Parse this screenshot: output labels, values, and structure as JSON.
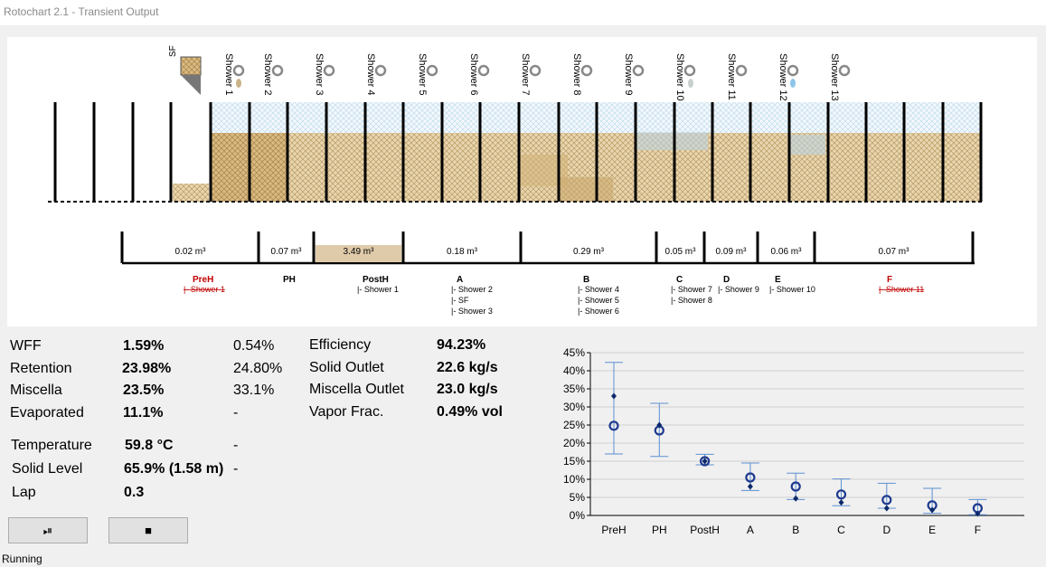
{
  "window": {
    "title": "Rotochart 2.1 - Transient Output"
  },
  "diagram": {
    "sf_label": "SF",
    "showers": [
      "Shower 1",
      "Shower 2",
      "Shower 3",
      "Shower 4",
      "Shower 5",
      "Shower 6",
      "Shower 7",
      "Shower 8",
      "Shower 9",
      "Shower 10",
      "Shower 11",
      "Shower 12",
      "Shower 13"
    ],
    "volumes": [
      "0.02 m³",
      "0.07 m³",
      "3.49 m³",
      "0.18 m³",
      "0.29 m³",
      "0.05 m³",
      "0.09 m³",
      "0.06 m³",
      "0.07 m³"
    ],
    "stages": [
      {
        "name": "PreH",
        "color": "#c00000",
        "subs": [
          "|- Shower 1"
        ],
        "strike": true
      },
      {
        "name": "PH",
        "color": "#000000",
        "subs": [],
        "strike": false
      },
      {
        "name": "PostH",
        "color": "#000000",
        "subs": [
          "|- Shower 1"
        ],
        "strike": false
      },
      {
        "name": "A",
        "color": "#000000",
        "subs": [
          "|- Shower 2",
          "|- SF",
          "|- Shower 3"
        ],
        "strike": false
      },
      {
        "name": "B",
        "color": "#000000",
        "subs": [
          "|- Shower 4",
          "|- Shower 5",
          "|- Shower 6"
        ],
        "strike": false
      },
      {
        "name": "C",
        "color": "#000000",
        "subs": [
          "|- Shower 7",
          "|- Shower 8"
        ],
        "strike": false
      },
      {
        "name": "D",
        "color": "#000000",
        "subs": [
          "|- Shower 9"
        ],
        "strike": false
      },
      {
        "name": "E",
        "color": "#000000",
        "subs": [
          "|- Shower 10"
        ],
        "strike": false
      },
      {
        "name": "F",
        "color": "#c00000",
        "subs": [
          "|- Shower 11"
        ],
        "strike": true
      }
    ]
  },
  "stats": {
    "wff": {
      "label": "WFF",
      "value": "1.59%",
      "ref": "0.54%"
    },
    "retention": {
      "label": "Retention",
      "value": "23.98%",
      "ref": "24.80%"
    },
    "miscella": {
      "label": "Miscella",
      "value": "23.5%",
      "ref": "33.1%"
    },
    "evaporated": {
      "label": "Evaporated",
      "value": "11.1%",
      "ref": "-"
    },
    "temperature": {
      "label": "Temperature",
      "value": "59.8 °C",
      "ref": "-"
    },
    "solid_level": {
      "label": "Solid Level",
      "value": "65.9% (1.58 m)",
      "ref": "-"
    },
    "lap": {
      "label": "Lap",
      "value": "0.3"
    },
    "efficiency": {
      "label": "Efficiency",
      "value": "94.23%"
    },
    "solid_outlet": {
      "label": "Solid Outlet",
      "value": "22.6 kg/s"
    },
    "miscella_outlet": {
      "label": "Miscella Outlet",
      "value": "23.0 kg/s"
    },
    "vapor_frac": {
      "label": "Vapor Frac.",
      "value": "0.49% vol"
    }
  },
  "buttons": {
    "play_pause": "⏯",
    "stop": "■"
  },
  "status": {
    "text": "Running"
  },
  "chart_data": {
    "type": "scatter",
    "categories": [
      "PreH",
      "PH",
      "PostH",
      "A",
      "B",
      "C",
      "D",
      "E",
      "F"
    ],
    "yticks": [
      "0%",
      "5%",
      "10%",
      "15%",
      "20%",
      "25%",
      "30%",
      "35%",
      "40%",
      "45%"
    ],
    "ylim": [
      0,
      45
    ],
    "grid": true,
    "series": [
      {
        "marker": "open-circle",
        "values": [
          24.8,
          23.5,
          15.0,
          10.5,
          8.0,
          5.8,
          4.3,
          2.8,
          2.0
        ]
      },
      {
        "marker": "diamond",
        "values": [
          33.0,
          25.0,
          15.0,
          8.0,
          4.7,
          3.6,
          2.0,
          1.5,
          0.5
        ]
      }
    ],
    "error_bars": {
      "low": [
        17.0,
        16.3,
        14.0,
        6.9,
        4.4,
        2.7,
        2.0,
        0.6,
        0.2
      ],
      "high": [
        42.3,
        31.0,
        16.9,
        14.5,
        11.7,
        10.1,
        8.9,
        7.5,
        4.4
      ]
    },
    "colors": {
      "series": "#1f3a8f",
      "error": "#5b8fd1",
      "grid": "#d0d0d0"
    }
  }
}
